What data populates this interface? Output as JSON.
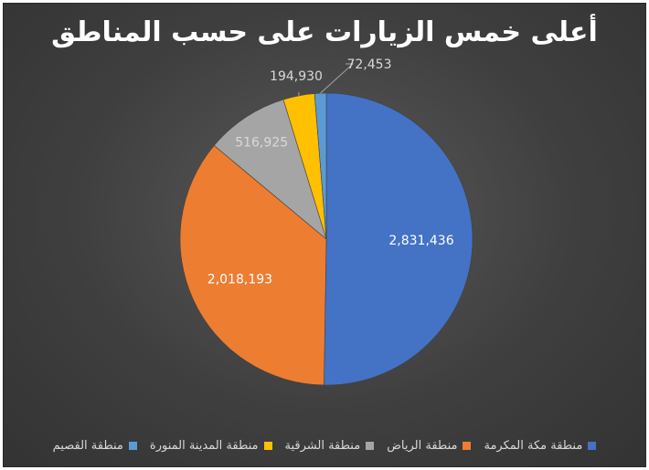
{
  "chart_data": {
    "type": "pie",
    "title": "أعلى خمس الزيارات على حسب المناطق",
    "categories": [
      "منطقة مكة المكرمة",
      "منطقة الرياض",
      "منطقة الشرقية",
      "منطقة المدينة المنورة",
      "منطقة القصيم"
    ],
    "values": [
      2831436,
      2018193,
      516925,
      194930,
      72453
    ],
    "data_labels": [
      "2,831,436",
      "2,018,193",
      "516,925",
      "194,930",
      "72,453"
    ],
    "colors": [
      "#4472C4",
      "#ED7D31",
      "#A5A5A5",
      "#FFC000",
      "#5B9BD5"
    ],
    "legend_position": "bottom"
  }
}
